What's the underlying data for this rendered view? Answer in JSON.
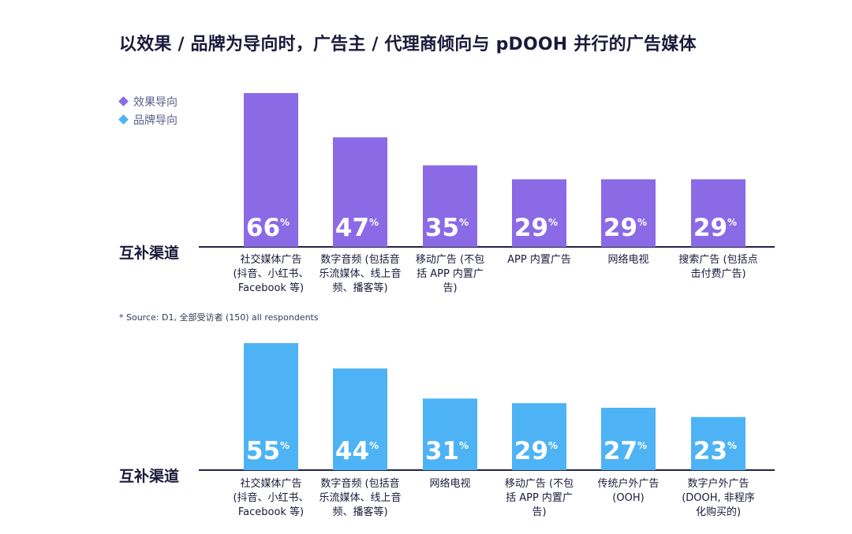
{
  "title": "以效果 / 品牌为导向时，广告主 / 代理商倾向与 pDOOH 并行的广告媒体",
  "legend": [
    {
      "label": "效果导向",
      "color": "#8b6ae6"
    },
    {
      "label": "品牌导向",
      "color": "#4db3f5"
    }
  ],
  "source": "* Source: D1, 全部受访者 (150) all respondents",
  "chart_data": [
    {
      "type": "bar",
      "ylabel": "互补渠道",
      "series": [
        {
          "name": "效果导向",
          "color": "#8b6ae6"
        }
      ],
      "categories": [
        [
          "社交媒体广告",
          "(抖音、小红书、",
          "Facebook 等)"
        ],
        [
          "数字音频 (包括音",
          "乐流媒体、线上音",
          "频、播客等)"
        ],
        [
          "移动广告 (不包",
          "括 APP 内置广",
          "告)"
        ],
        [
          "APP 内置广告"
        ],
        [
          "网络电视"
        ],
        [
          "搜索广告 (包括点",
          "击付费广告)"
        ]
      ],
      "values": [
        66,
        47,
        35,
        29,
        29,
        29
      ],
      "value_suffix": "%",
      "ylim": [
        0,
        66
      ]
    },
    {
      "type": "bar",
      "ylabel": "互补渠道",
      "series": [
        {
          "name": "品牌导向",
          "color": "#4db3f5"
        }
      ],
      "categories": [
        [
          "社交媒体广告",
          "(抖音、小红书、",
          "Facebook 等)"
        ],
        [
          "数字音频 (包括音",
          "乐流媒体、线上音",
          "频、播客等)"
        ],
        [
          "网络电视"
        ],
        [
          "移动广告 (不包",
          "括 APP 内置广",
          "告)"
        ],
        [
          "传统户外广告",
          "(OOH)"
        ],
        [
          "数字户外广告",
          "(DOOH, 非程序",
          "化购买的)"
        ]
      ],
      "values": [
        55,
        44,
        31,
        29,
        27,
        23
      ],
      "value_suffix": "%",
      "ylim": [
        0,
        55
      ]
    }
  ]
}
